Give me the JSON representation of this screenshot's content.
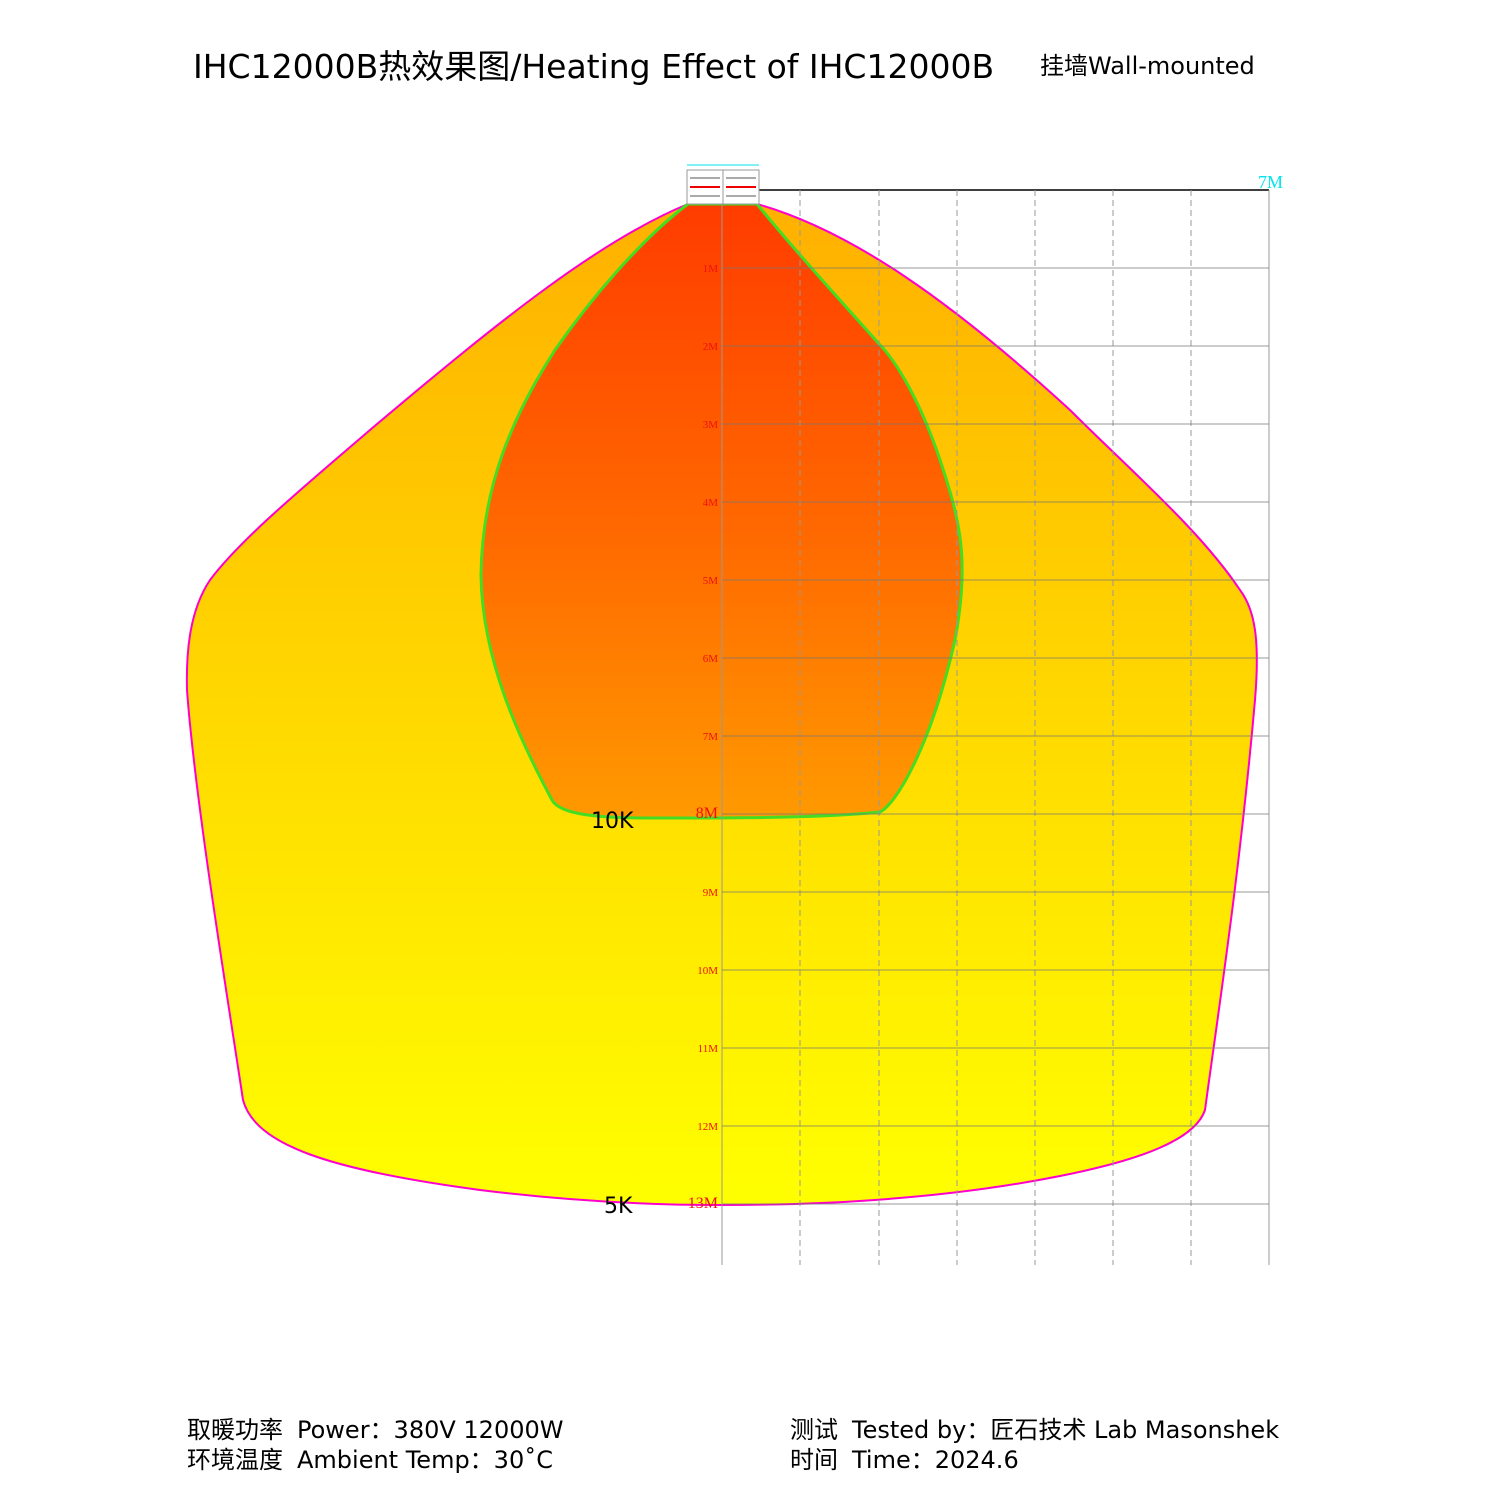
{
  "title": "IHC12000B热效果图/Heating Effect of IHC12000B",
  "subtitle": "挂墙Wall-mounted",
  "colors": {
    "outer_border": "#ff00cc",
    "inner_border": "#44dd22",
    "hot": "#ff3b00",
    "warm": "#ffc000",
    "cool": "#ffff00",
    "row_label": "#ee1111",
    "top_label": "#00e5ee",
    "grid": "#999999"
  },
  "diagram": {
    "top_right_label": "7M",
    "row_labels": [
      "1M",
      "2M",
      "3M",
      "4M",
      "5M",
      "6M",
      "7M",
      "8M",
      "9M",
      "10M",
      "11M",
      "12M",
      "13M"
    ],
    "zone_labels": {
      "inner": "10K",
      "outer": "5K"
    }
  },
  "footer": {
    "power_label": "取暖功率",
    "power_value": "Power：380V  12000W",
    "temp_label": "环境温度",
    "temp_value": "Ambient Temp：30˚C",
    "tested_label": "测试",
    "tested_value": "Tested by：匠石技术  Lab Masonshek",
    "time_label": "时间",
    "time_value": "Time：2024.6"
  }
}
